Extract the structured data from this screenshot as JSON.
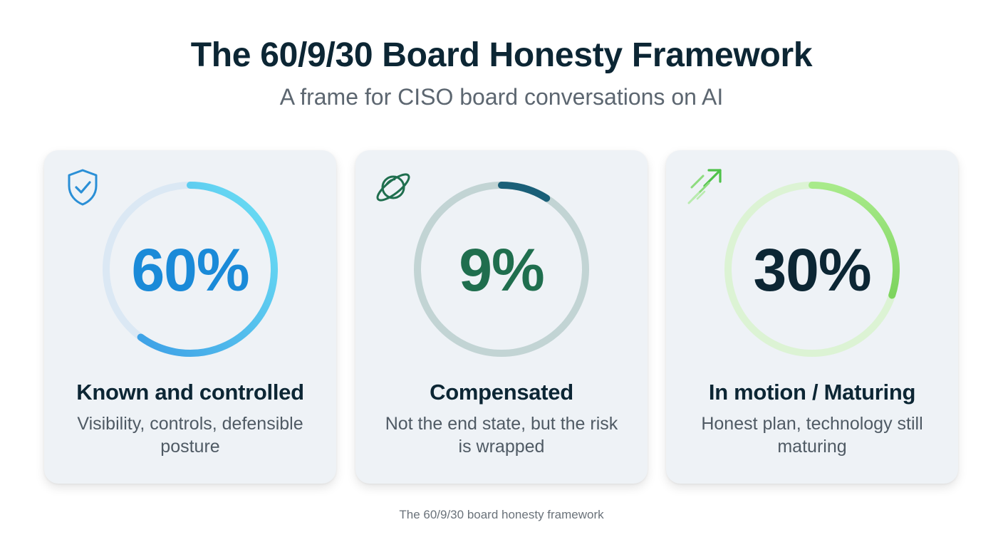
{
  "title": "The 60/9/30 Board Honesty Framework",
  "subtitle": "A frame for CISO board conversations on AI",
  "caption": "The 60/9/30 board honesty framework",
  "cards": [
    {
      "percent_label": "60%",
      "value": 60,
      "label": "Known and controlled",
      "description": "Visibility, controls, defensible posture",
      "icon": "shield-check-icon",
      "color": "#1a8ad8",
      "track_color": "#dbe8f4",
      "arc_start": "#3da0e6",
      "arc_end": "#6ee2f5"
    },
    {
      "percent_label": "9%",
      "value": 9,
      "label": "Compensated",
      "description": "Not the end state, but the risk is wrapped",
      "icon": "planet-icon",
      "color": "#1f6e4e",
      "track_color": "#c2d4d4",
      "arc_start": "#1a5f78",
      "arc_end": "#1a5f78"
    },
    {
      "percent_label": "30%",
      "value": 30,
      "label": "In motion / Maturing",
      "description": "Honest plan, technology still maturing",
      "icon": "arrow-motion-icon",
      "color": "#0c2634",
      "track_color": "#dcf3d4",
      "arc_start": "#a8ea8a",
      "arc_end": "#7dd45e"
    }
  ]
}
